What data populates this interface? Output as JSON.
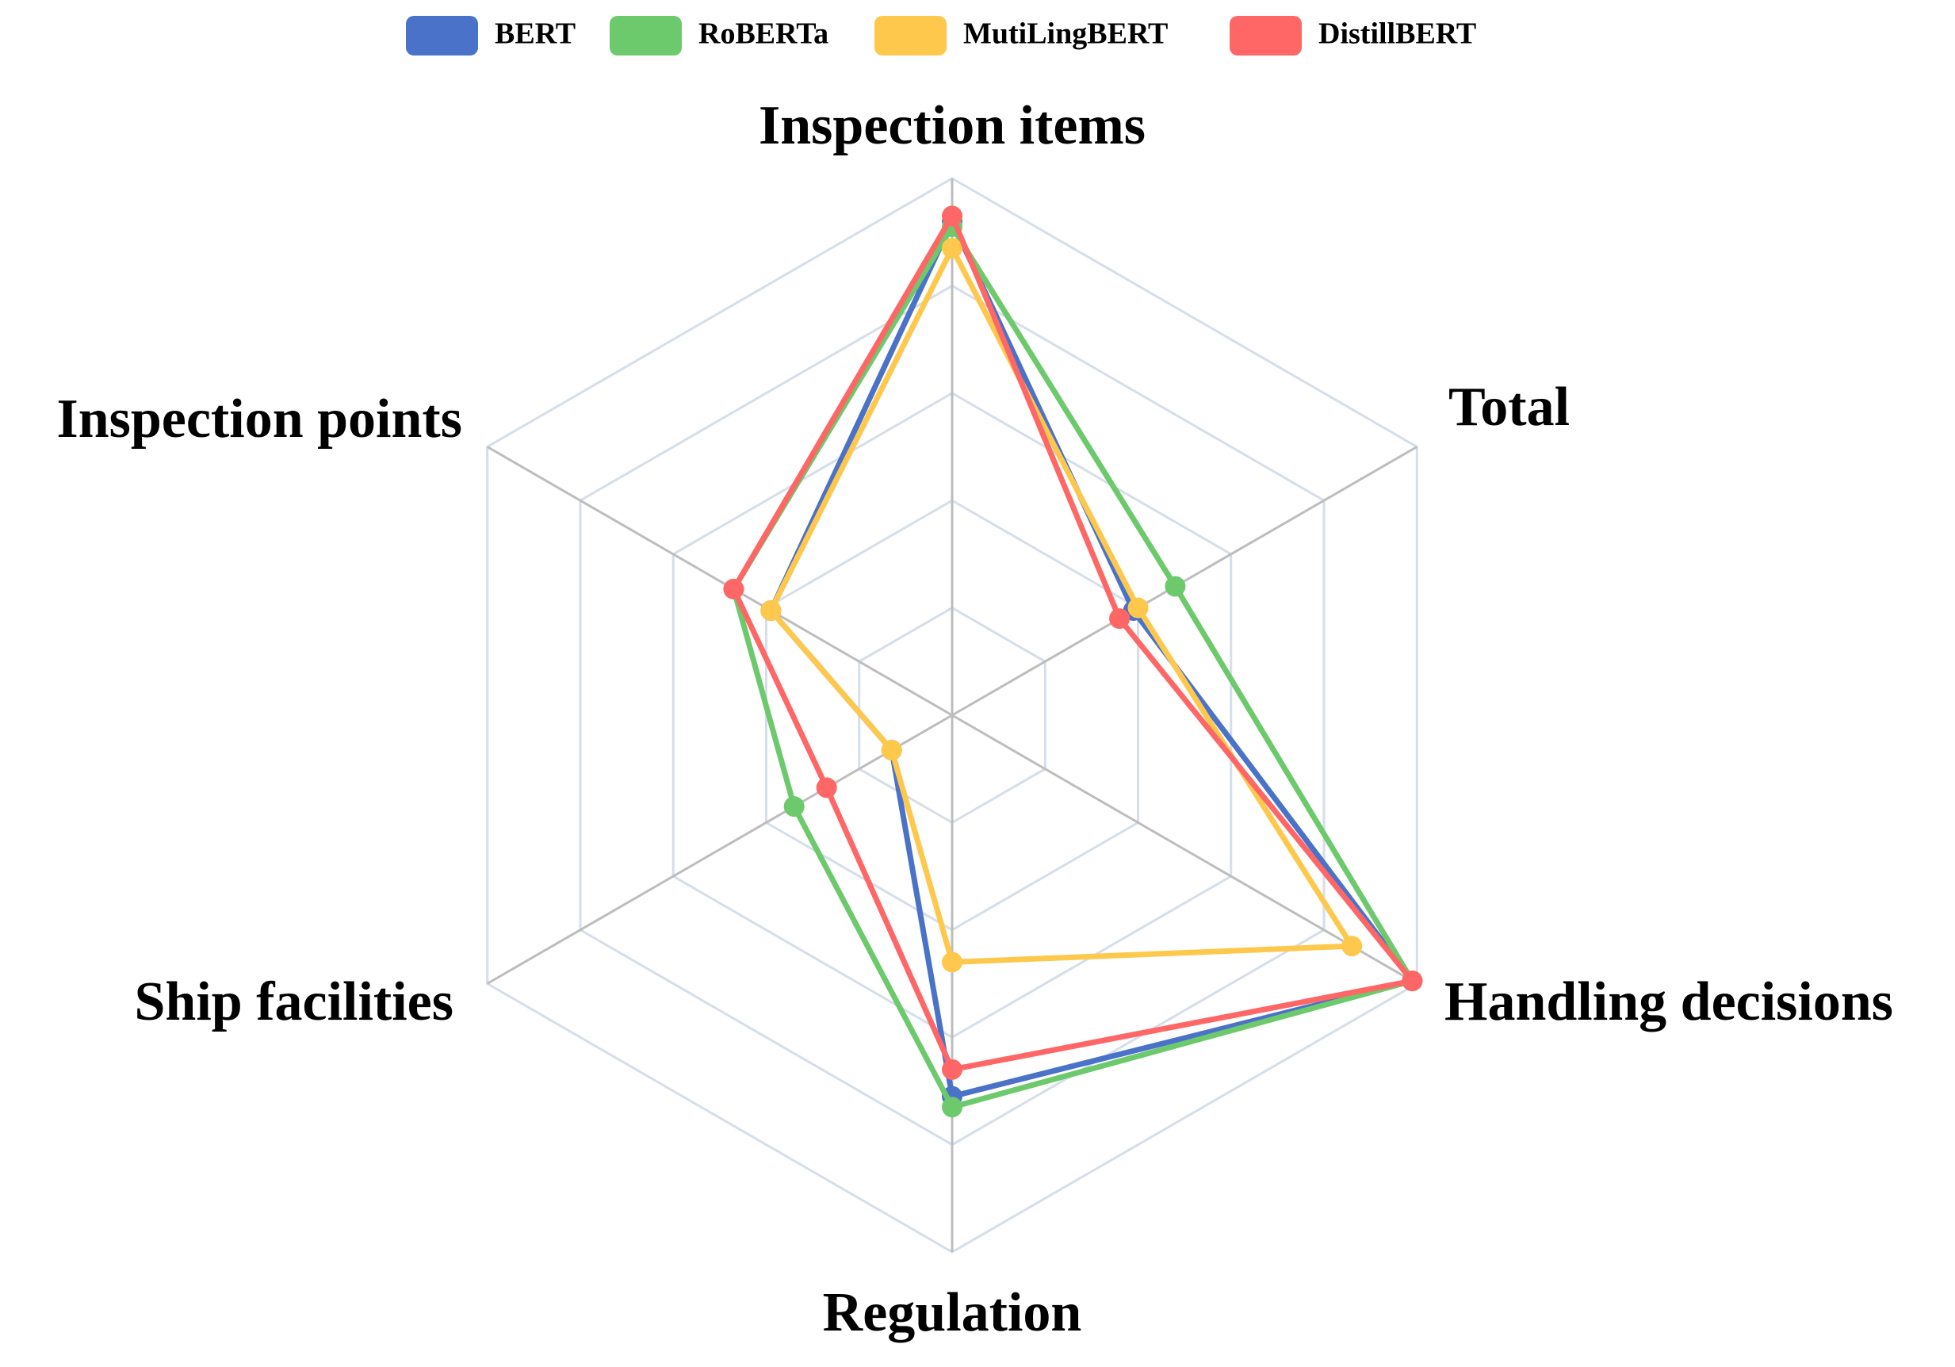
{
  "chart_data": {
    "type": "radar",
    "categories": [
      "Inspection items",
      "Total",
      "Handling decisions",
      "Regulation",
      "Ship facilities",
      "Inspection points"
    ],
    "rlim": [
      0,
      1
    ],
    "rticks": [
      0.2,
      0.4,
      0.6,
      0.8,
      1
    ],
    "grid": true,
    "legend": "top",
    "series": [
      {
        "name": "BERT",
        "color": "#4a72c8",
        "values": [
          0.92,
          0.39,
          0.99,
          0.71,
          0.13,
          0.39
        ]
      },
      {
        "name": "RoBERTa",
        "color": "#6cc96c",
        "values": [
          0.91,
          0.48,
          0.99,
          0.73,
          0.34,
          0.47
        ]
      },
      {
        "name": "MutiLingBERT",
        "color": "#fec84d",
        "values": [
          0.87,
          0.4,
          0.86,
          0.46,
          0.13,
          0.39
        ]
      },
      {
        "name": "DistillBERT",
        "color": "#ff6666",
        "values": [
          0.93,
          0.36,
          0.99,
          0.66,
          0.27,
          0.47
        ]
      }
    ]
  }
}
